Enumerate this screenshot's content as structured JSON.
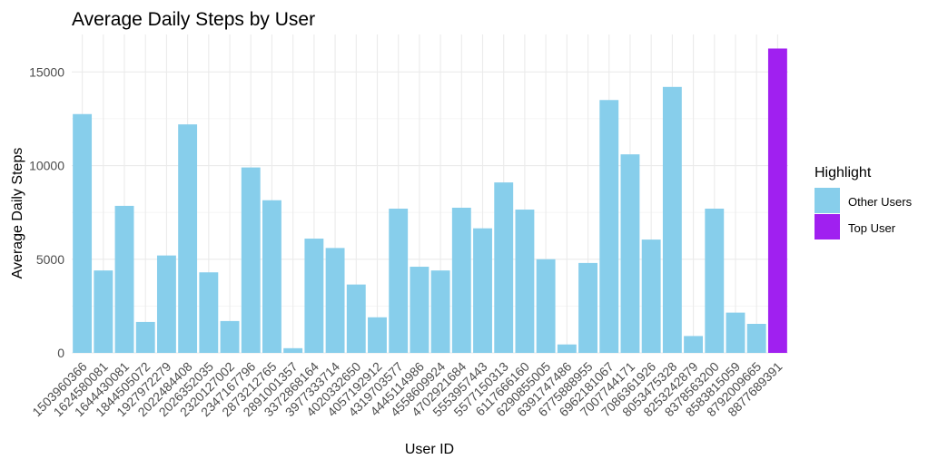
{
  "chart_data": {
    "type": "bar",
    "title": "Average Daily Steps by User",
    "xlabel": "User ID",
    "ylabel": "Average Daily Steps",
    "ylim": [
      0,
      17000
    ],
    "yticks": [
      0,
      5000,
      10000,
      15000
    ],
    "grid": true,
    "legend": {
      "title": "Highlight",
      "position": "right",
      "entries": [
        {
          "label": "Other Users",
          "color": "#87CEEB"
        },
        {
          "label": "Top User",
          "color": "#A020F0"
        }
      ]
    },
    "categories": [
      "1503960366",
      "1624580081",
      "1644430081",
      "1844505072",
      "1927972279",
      "2022484408",
      "2026352035",
      "2320127002",
      "2347167796",
      "2873212765",
      "2891001357",
      "3372868164",
      "3977333714",
      "4020332650",
      "4057192912",
      "4319703577",
      "4445114986",
      "4558609924",
      "4702921684",
      "5553957443",
      "5577150313",
      "6117666160",
      "6290855005",
      "6391747486",
      "6775888955",
      "6962181067",
      "7007744171",
      "7086361926",
      "8053475328",
      "8253242879",
      "8378563200",
      "8583815059",
      "8792009665",
      "8877689391"
    ],
    "values": [
      12750,
      4400,
      7850,
      1650,
      5200,
      12200,
      4300,
      1700,
      9900,
      8150,
      250,
      6100,
      5600,
      3650,
      1900,
      7700,
      4600,
      4400,
      7750,
      6650,
      9100,
      7650,
      5000,
      450,
      4800,
      13500,
      10600,
      6050,
      14200,
      900,
      7700,
      2150,
      1550,
      16250
    ],
    "highlight": [
      "Other Users",
      "Other Users",
      "Other Users",
      "Other Users",
      "Other Users",
      "Other Users",
      "Other Users",
      "Other Users",
      "Other Users",
      "Other Users",
      "Other Users",
      "Other Users",
      "Other Users",
      "Other Users",
      "Other Users",
      "Other Users",
      "Other Users",
      "Other Users",
      "Other Users",
      "Other Users",
      "Other Users",
      "Other Users",
      "Other Users",
      "Other Users",
      "Other Users",
      "Other Users",
      "Other Users",
      "Other Users",
      "Other Users",
      "Other Users",
      "Other Users",
      "Other Users",
      "Other Users",
      "Top User"
    ]
  }
}
